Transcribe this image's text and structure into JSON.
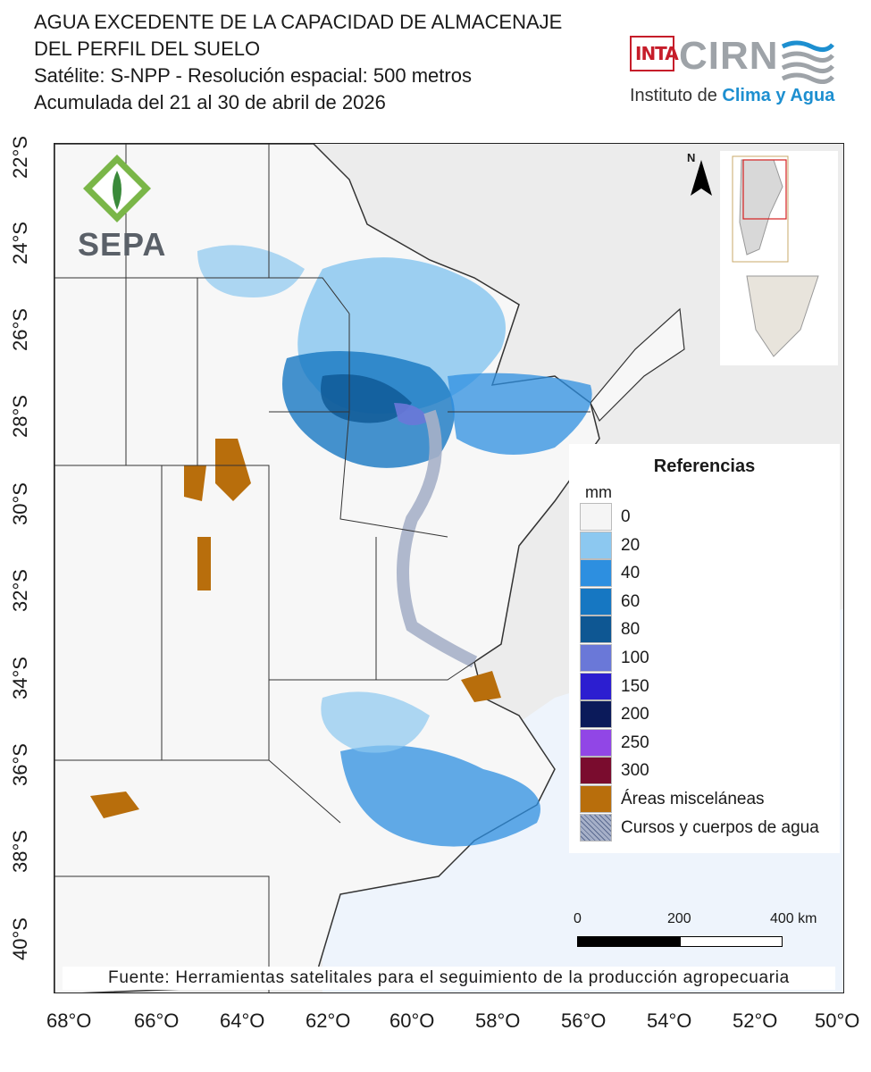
{
  "header": {
    "title_lines": [
      "AGUA EXCEDENTE DE LA CAPACIDAD DE ALMACENAJE",
      "DEL PERFIL DEL SUELO",
      "Satélite: S-NPP - Resolución espacial: 500 metros",
      "Acumulada del 21 al 30 de abril de 2026"
    ]
  },
  "logos": {
    "inta": "INTA",
    "cirn": "CIRN",
    "institute_prefix": "Instituto de ",
    "institute_highlight": "Clima y Agua",
    "sepa": "SEPA"
  },
  "map": {
    "north_label": "N",
    "lat_ticks": [
      "22°S",
      "24°S",
      "26°S",
      "28°S",
      "30°S",
      "32°S",
      "34°S",
      "36°S",
      "38°S",
      "40°S"
    ],
    "lon_ticks": [
      "68°O",
      "66°O",
      "64°O",
      "62°O",
      "60°O",
      "58°O",
      "56°O",
      "54°O",
      "52°O",
      "50°O"
    ]
  },
  "legend": {
    "title": "Referencias",
    "unit": "mm",
    "items": [
      {
        "label": "0",
        "color": "#f5f5f5"
      },
      {
        "label": "20",
        "color": "#8cc8f0"
      },
      {
        "label": "40",
        "color": "#2d8fe0"
      },
      {
        "label": "60",
        "color": "#1677c2"
      },
      {
        "label": "80",
        "color": "#0e5793"
      },
      {
        "label": "100",
        "color": "#6a78d8"
      },
      {
        "label": "150",
        "color": "#2c1ed0"
      },
      {
        "label": "200",
        "color": "#0b1a5a"
      },
      {
        "label": "250",
        "color": "#9146e6"
      },
      {
        "label": "300",
        "color": "#7a0c2e"
      },
      {
        "label": "Áreas misceláneas",
        "color": "#b86e0c"
      },
      {
        "label": "Cursos y cuerpos de agua",
        "color": "#a6b0c8"
      }
    ]
  },
  "scale": {
    "labels": [
      "0",
      "200",
      "400 km"
    ]
  },
  "source": "Fuente: Herramientas satelitales para el seguimiento de la producción agropecuaria"
}
